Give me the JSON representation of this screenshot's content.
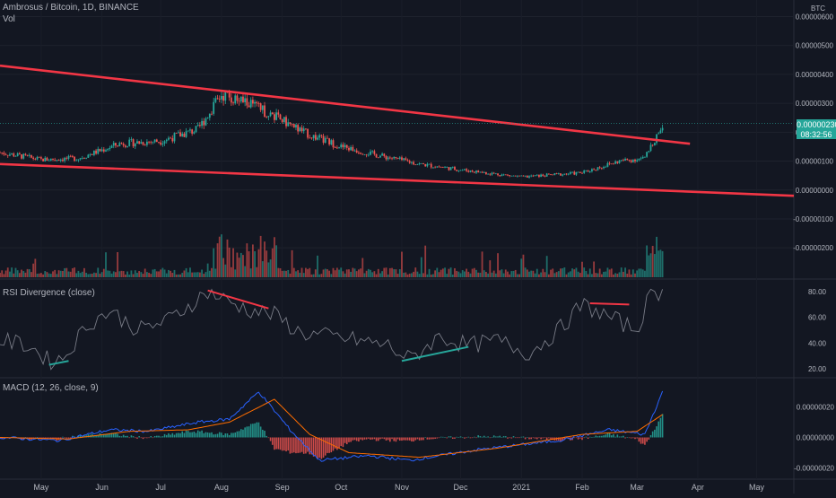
{
  "header": {
    "symbol_line": "Ambrosus / Bitcoin, 1D, BINANCE",
    "volume_label": "Vol",
    "currency_badge": "BTC"
  },
  "price_axis": {
    "ticks": [
      "0.00000600",
      "0.00000500",
      "0.00000400",
      "0.00000300",
      "0.00000200",
      "0.00000100",
      "0.00000000",
      "-0.00000100",
      "-0.00000200"
    ]
  },
  "last_price": {
    "value": "0.00000230",
    "countdown": "08:32:56",
    "color": "#26a69a"
  },
  "rsi_panel": {
    "title": "RSI Divergence (close)",
    "ticks": [
      "80.00",
      "60.00",
      "40.00",
      "20.00"
    ]
  },
  "macd_panel": {
    "title": "MACD (12, 26, close, 9)",
    "ticks": [
      "0.00000020",
      "0.00000000",
      "-0.00000020"
    ]
  },
  "time_axis": {
    "labels": [
      "May",
      "Jun",
      "Jul",
      "Aug",
      "Sep",
      "Oct",
      "Nov",
      "Dec",
      "2021",
      "Feb",
      "Mar",
      "Apr",
      "May"
    ]
  },
  "colors": {
    "up": "#26a69a",
    "down": "#ef5350",
    "trendline": "#f23645",
    "divergence_bull": "#26a69a",
    "divergence_bear": "#f23645",
    "rsi_line": "#787b86",
    "macd_line": "#2962ff",
    "signal_line": "#ff6d00",
    "background": "#131722",
    "grid": "#2a2e39"
  },
  "chart_data": [
    {
      "type": "candlestick",
      "title": "Ambrosus / Bitcoin, 1D, BINANCE",
      "ylim": [
        -2.8e-06,
        6.2e-06
      ],
      "xlim": [
        "2020-04-10",
        "2021-05-20"
      ],
      "series": [
        {
          "name": "Ambrosus / Bitcoin",
          "close": [
            {
              "date": "2020-04-10",
              "value": 1.3e-06
            },
            {
              "date": "2020-05-01",
              "value": 1.05e-06
            },
            {
              "date": "2020-05-20",
              "value": 1.1e-06
            },
            {
              "date": "2020-06-10",
              "value": 1.6e-06
            },
            {
              "date": "2020-07-01",
              "value": 1.7e-06
            },
            {
              "date": "2020-07-20",
              "value": 2.1e-06
            },
            {
              "date": "2020-08-01",
              "value": 3.3e-06
            },
            {
              "date": "2020-08-15",
              "value": 3e-06
            },
            {
              "date": "2020-09-01",
              "value": 2.4e-06
            },
            {
              "date": "2020-09-15",
              "value": 1.9e-06
            },
            {
              "date": "2020-10-01",
              "value": 1.5e-06
            },
            {
              "date": "2020-10-20",
              "value": 1.2e-06
            },
            {
              "date": "2020-11-10",
              "value": 9e-07
            },
            {
              "date": "2020-12-01",
              "value": 7e-07
            },
            {
              "date": "2021-01-01",
              "value": 4.5e-07
            },
            {
              "date": "2021-02-01",
              "value": 6e-07
            },
            {
              "date": "2021-02-20",
              "value": 1e-06
            },
            {
              "date": "2021-03-05",
              "value": 1.1e-06
            },
            {
              "date": "2021-03-14",
              "value": 2.3e-06
            }
          ]
        }
      ],
      "trendlines": [
        {
          "name": "upper",
          "from": {
            "date": "2020-04-10",
            "value": 4.3e-06
          },
          "to": {
            "date": "2021-03-28",
            "value": 1.6e-06
          }
        },
        {
          "name": "lower",
          "from": {
            "date": "2020-04-10",
            "value": 9e-07
          },
          "to": {
            "date": "2021-05-20",
            "value": -2e-07
          }
        }
      ],
      "yticks": [
        6e-06,
        5e-06,
        4e-06,
        3e-06,
        2e-06,
        1e-06,
        0,
        -1e-06,
        -2e-06
      ]
    },
    {
      "type": "line",
      "title": "RSI Divergence (close)",
      "ylim": [
        15,
        85
      ],
      "yticks": [
        80,
        60,
        40,
        20
      ],
      "series": [
        {
          "name": "RSI",
          "points": [
            {
              "date": "2020-04-10",
              "value": 42
            },
            {
              "date": "2020-04-25",
              "value": 38
            },
            {
              "date": "2020-05-05",
              "value": 26
            },
            {
              "date": "2020-05-12",
              "value": 28
            },
            {
              "date": "2020-05-25",
              "value": 55
            },
            {
              "date": "2020-06-05",
              "value": 65
            },
            {
              "date": "2020-06-20",
              "value": 50
            },
            {
              "date": "2020-07-05",
              "value": 58
            },
            {
              "date": "2020-07-25",
              "value": 80
            },
            {
              "date": "2020-08-05",
              "value": 72
            },
            {
              "date": "2020-08-15",
              "value": 66
            },
            {
              "date": "2020-08-28",
              "value": 62
            },
            {
              "date": "2020-09-10",
              "value": 48
            },
            {
              "date": "2020-09-25",
              "value": 45
            },
            {
              "date": "2020-10-10",
              "value": 42
            },
            {
              "date": "2020-10-25",
              "value": 38
            },
            {
              "date": "2020-11-05",
              "value": 27
            },
            {
              "date": "2020-11-20",
              "value": 45
            },
            {
              "date": "2020-12-05",
              "value": 38
            },
            {
              "date": "2020-12-20",
              "value": 42
            },
            {
              "date": "2021-01-05",
              "value": 32
            },
            {
              "date": "2021-01-20",
              "value": 50
            },
            {
              "date": "2021-02-01",
              "value": 70
            },
            {
              "date": "2021-02-15",
              "value": 60
            },
            {
              "date": "2021-03-01",
              "value": 50
            },
            {
              "date": "2021-03-08",
              "value": 80
            },
            {
              "date": "2021-03-14",
              "value": 80
            }
          ]
        }
      ],
      "divergences": [
        {
          "kind": "bullish",
          "from": {
            "date": "2020-05-05",
            "value": 23
          },
          "to": {
            "date": "2020-05-15",
            "value": 26
          }
        },
        {
          "kind": "bearish",
          "from": {
            "date": "2020-07-25",
            "value": 81
          },
          "to": {
            "date": "2020-08-25",
            "value": 67
          }
        },
        {
          "kind": "bullish",
          "from": {
            "date": "2020-11-01",
            "value": 26
          },
          "to": {
            "date": "2020-12-05",
            "value": 37
          }
        },
        {
          "kind": "bearish",
          "from": {
            "date": "2021-02-05",
            "value": 71
          },
          "to": {
            "date": "2021-02-25",
            "value": 70
          }
        }
      ]
    },
    {
      "type": "line",
      "title": "MACD (12, 26, close, 9)",
      "ylim": [
        -2.5e-07,
        3.5e-07
      ],
      "yticks": [
        2e-07,
        0,
        -2e-07
      ],
      "series": [
        {
          "name": "MACD",
          "points": [
            {
              "date": "2020-04-10",
              "value": 0
            },
            {
              "date": "2020-05-10",
              "value": -2e-08
            },
            {
              "date": "2020-06-05",
              "value": 5e-08
            },
            {
              "date": "2020-06-25",
              "value": 4e-08
            },
            {
              "date": "2020-07-20",
              "value": 1e-07
            },
            {
              "date": "2020-08-05",
              "value": 1.2e-07
            },
            {
              "date": "2020-08-20",
              "value": 3e-07
            },
            {
              "date": "2020-09-05",
              "value": 5e-08
            },
            {
              "date": "2020-09-20",
              "value": -1.5e-07
            },
            {
              "date": "2020-10-15",
              "value": -1.2e-07
            },
            {
              "date": "2020-11-05",
              "value": -1.5e-07
            },
            {
              "date": "2020-12-10",
              "value": -8e-08
            },
            {
              "date": "2021-01-20",
              "value": -2e-08
            },
            {
              "date": "2021-02-15",
              "value": 5e-08
            },
            {
              "date": "2021-03-05",
              "value": 2e-08
            },
            {
              "date": "2021-03-14",
              "value": 3e-07
            }
          ]
        },
        {
          "name": "Signal",
          "points": [
            {
              "date": "2020-04-10",
              "value": 0
            },
            {
              "date": "2020-05-15",
              "value": -1e-08
            },
            {
              "date": "2020-06-15",
              "value": 4e-08
            },
            {
              "date": "2020-07-15",
              "value": 5e-08
            },
            {
              "date": "2020-08-05",
              "value": 1e-07
            },
            {
              "date": "2020-08-28",
              "value": 2.5e-07
            },
            {
              "date": "2020-09-15",
              "value": 2e-08
            },
            {
              "date": "2020-10-05",
              "value": -1e-07
            },
            {
              "date": "2020-11-10",
              "value": -1.3e-07
            },
            {
              "date": "2020-12-20",
              "value": -7e-08
            },
            {
              "date": "2021-02-01",
              "value": 2e-08
            },
            {
              "date": "2021-03-01",
              "value": 4e-08
            },
            {
              "date": "2021-03-14",
              "value": 1.5e-07
            }
          ]
        }
      ]
    }
  ]
}
